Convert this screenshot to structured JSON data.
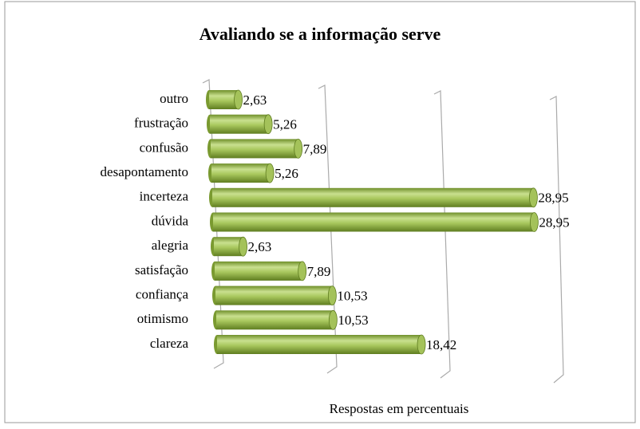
{
  "chart_data": {
    "type": "bar",
    "orientation": "horizontal",
    "title": "Avaliando se a informação serve",
    "x_label": "Respostas em percentuais",
    "categories": [
      "outro",
      "frustração",
      "confusão",
      "desapontamento",
      "incerteza",
      "dúvida",
      "alegria",
      "satisfação",
      "confiança",
      "otimismo",
      "clareza"
    ],
    "values": [
      2.63,
      5.26,
      7.89,
      5.26,
      28.95,
      28.95,
      2.63,
      7.89,
      10.53,
      10.53,
      18.42
    ],
    "value_labels": [
      "2,63",
      "5,26",
      "7,89",
      "5,26",
      "28,95",
      "28,95",
      "2,63",
      "7,89",
      "10,53",
      "10,53",
      "18,42"
    ],
    "color": "#9bbb59",
    "xlim": [
      0,
      30
    ],
    "xticks": [
      0,
      10,
      20,
      30
    ],
    "grid": true
  }
}
